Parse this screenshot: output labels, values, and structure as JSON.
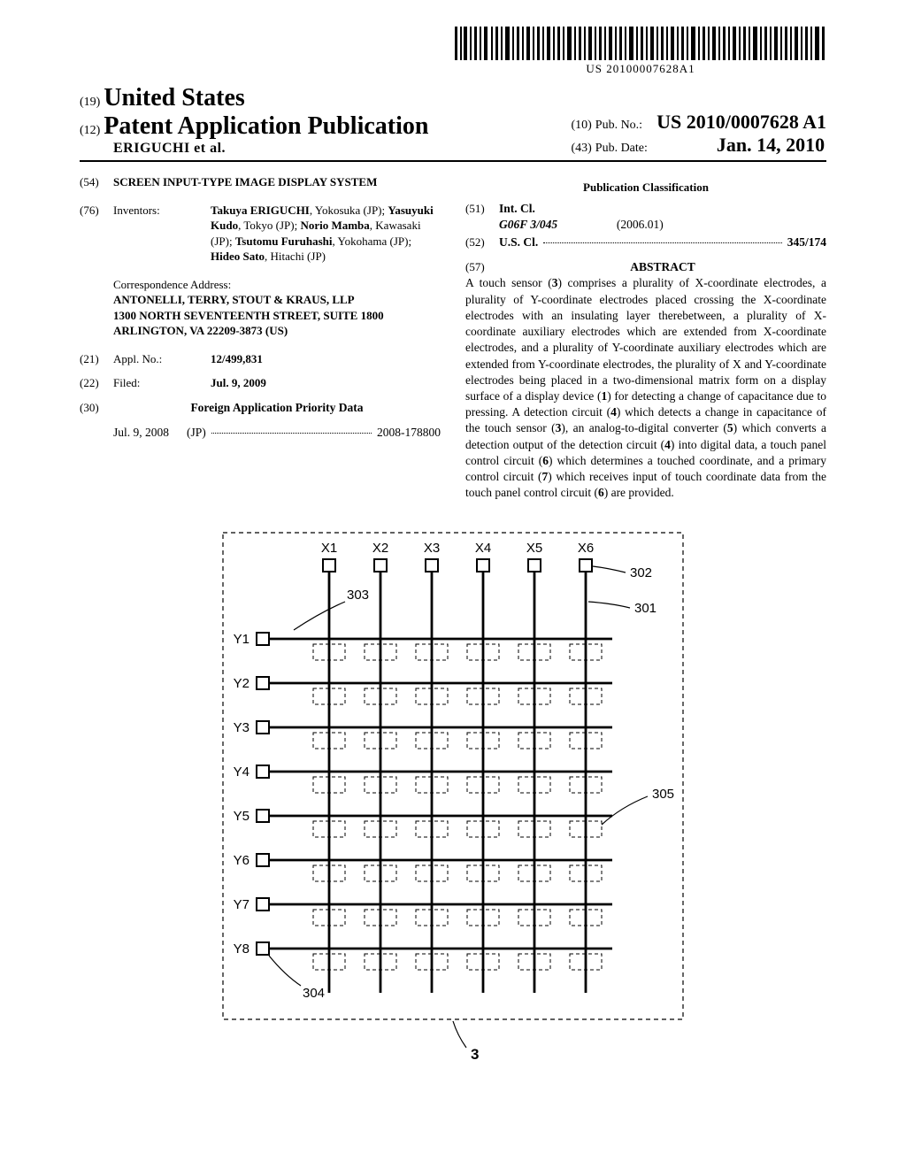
{
  "barcode_text": "US 20100007628A1",
  "header": {
    "code19": "(19)",
    "country": "United States",
    "code12": "(12)",
    "doctype": "Patent Application Publication",
    "authors": "ERIGUCHI et al.",
    "code10": "(10)",
    "pubno_label": "Pub. No.:",
    "pubno": "US 2010/0007628 A1",
    "code43": "(43)",
    "pubdate_label": "Pub. Date:",
    "pubdate": "Jan. 14, 2010"
  },
  "left": {
    "code54": "(54)",
    "title": "SCREEN INPUT-TYPE IMAGE DISPLAY SYSTEM",
    "code76": "(76)",
    "inventors_label": "Inventors:",
    "inventors_html": "Takuya ERIGUCHI, Yokosuka (JP); Yasuyuki Kudo, Tokyo (JP); Norio Mamba, Kawasaki (JP); Tsutomu Furuhashi, Yokohama (JP); Hideo Sato, Hitachi (JP)",
    "corr_label": "Correspondence Address:",
    "corr_line1": "ANTONELLI, TERRY, STOUT & KRAUS, LLP",
    "corr_line2": "1300 NORTH SEVENTEENTH STREET, SUITE 1800",
    "corr_line3": "ARLINGTON, VA 22209-3873 (US)",
    "code21": "(21)",
    "appl_label": "Appl. No.:",
    "appl_no": "12/499,831",
    "code22": "(22)",
    "filed_label": "Filed:",
    "filed": "Jul. 9, 2009",
    "code30": "(30)",
    "foreign_label": "Foreign Application Priority Data",
    "foreign_date": "Jul. 9, 2008",
    "foreign_cc": "(JP)",
    "foreign_no": "2008-178800"
  },
  "right": {
    "pubclass_label": "Publication Classification",
    "code51": "(51)",
    "intcl_label": "Int. Cl.",
    "intcl_code": "G06F 3/045",
    "intcl_year": "(2006.01)",
    "code52": "(52)",
    "uscl_label": "U.S. Cl.",
    "uscl_val": "345/174",
    "code57": "(57)",
    "abstract_label": "ABSTRACT",
    "abstract": "A touch sensor (3) comprises a plurality of X-coordinate electrodes, a plurality of Y-coordinate electrodes placed crossing the X-coordinate electrodes with an insulating layer therebetween, a plurality of X-coordinate auxiliary electrodes which are extended from X-coordinate electrodes, and a plurality of Y-coordinate auxiliary electrodes which are extended from Y-coordinate electrodes, the plurality of X and Y-coordinate electrodes being placed in a two-dimensional matrix form on a display surface of a display device (1) for detecting a change of capacitance due to pressing. A detection circuit (4) which detects a change in capacitance of the touch sensor (3), an analog-to-digital converter (5) which converts a detection output of the detection circuit (4) into digital data, a touch panel control circuit (6) which determines a touched coordinate, and a primary control circuit (7) which receives input of touch coordinate data from the touch panel control circuit (6) are provided."
  },
  "figure": {
    "x_labels": [
      "X1",
      "X2",
      "X3",
      "X4",
      "X5",
      "X6"
    ],
    "y_labels": [
      "Y1",
      "Y2",
      "Y3",
      "Y4",
      "Y5",
      "Y6",
      "Y7",
      "Y8"
    ],
    "callouts": {
      "c302": "302",
      "c301": "301",
      "c303": "303",
      "c304": "304",
      "c305": "305",
      "c3": "3"
    },
    "stroke": "#000000",
    "label_fontsize": 15,
    "callout_fontsize": 15
  }
}
